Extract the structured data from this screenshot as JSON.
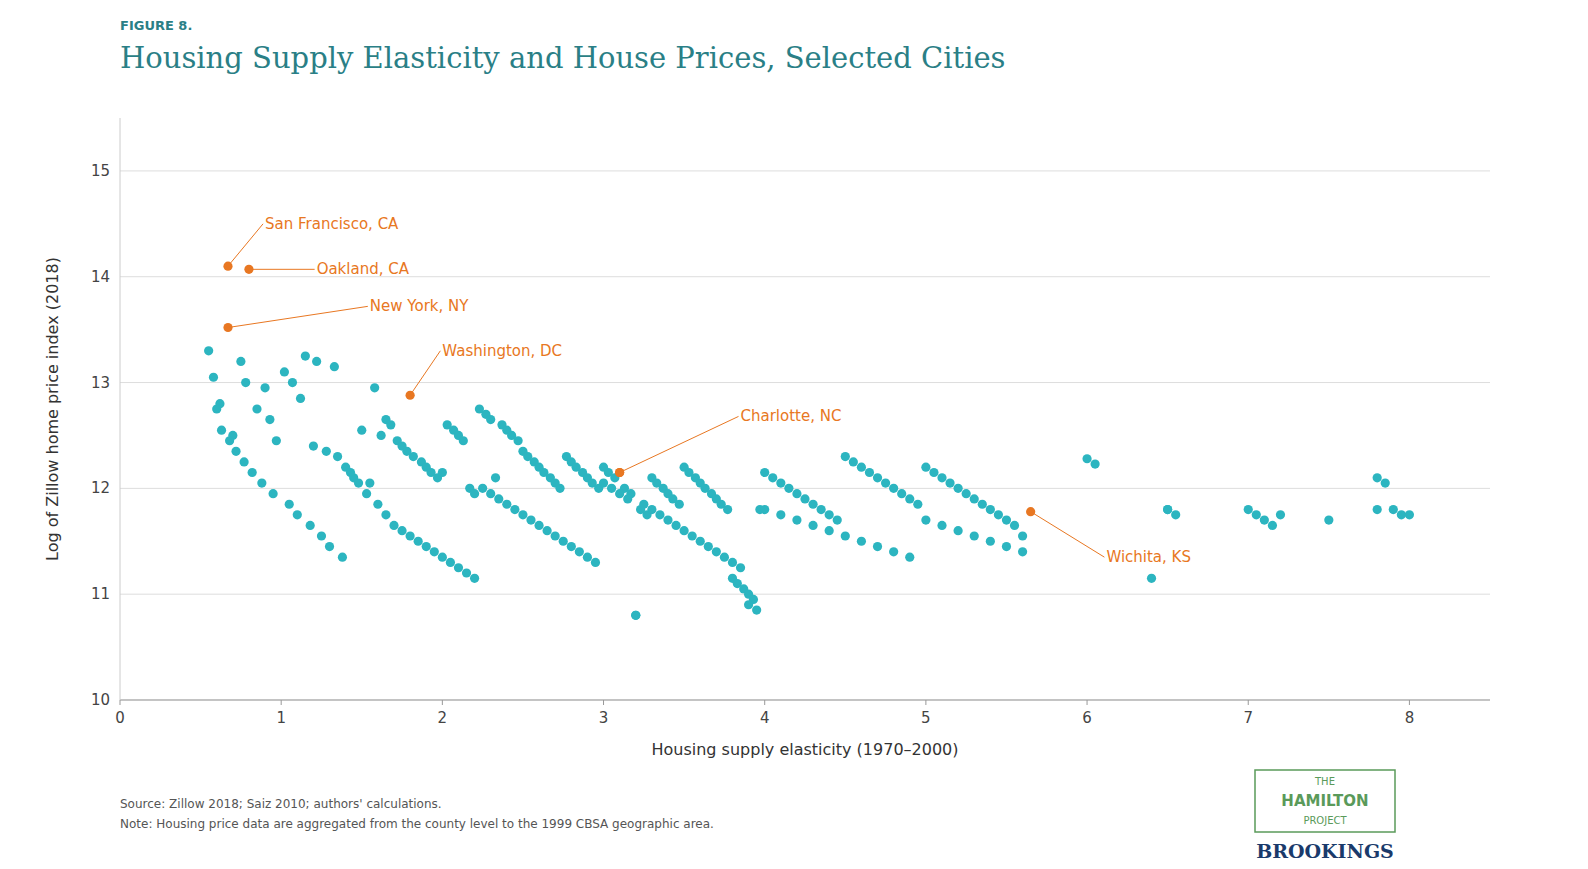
{
  "chart_data": {
    "type": "scatter",
    "figure_label": "FIGURE 8.",
    "title": "Housing Supply Elasticity and House Prices, Selected Cities",
    "xlabel": "Housing supply elasticity (1970–2000)",
    "ylabel": "Log of Zillow home price index (2018)",
    "xlim": [
      0,
      8.5
    ],
    "ylim": [
      10,
      15.5
    ],
    "xticks": [
      0,
      1,
      2,
      3,
      4,
      5,
      6,
      7,
      8
    ],
    "yticks": [
      10,
      11,
      12,
      13,
      14,
      15
    ],
    "grid": true,
    "x": [
      0.67,
      0.8,
      0.67,
      1.8,
      3.1,
      5.65,
      0.55,
      0.58,
      0.62,
      0.7,
      0.75,
      0.78,
      0.85,
      0.9,
      0.93,
      0.97,
      1.02,
      1.07,
      1.12,
      1.15,
      1.2,
      1.22,
      1.28,
      1.33,
      1.35,
      1.4,
      1.45,
      1.5,
      1.55,
      1.58,
      1.62,
      1.65,
      1.68,
      1.72,
      1.75,
      1.78,
      1.82,
      1.87,
      1.9,
      1.93,
      1.97,
      2.0,
      2.03,
      2.07,
      2.1,
      2.13,
      2.17,
      2.2,
      2.23,
      2.27,
      2.3,
      2.33,
      2.37,
      2.4,
      2.43,
      2.47,
      2.5,
      2.53,
      2.57,
      2.6,
      2.63,
      2.67,
      2.7,
      2.73,
      2.77,
      2.8,
      2.83,
      2.87,
      2.9,
      2.93,
      2.97,
      3.0,
      3.03,
      3.07,
      3.1,
      3.13,
      3.17,
      3.2,
      3.23,
      3.27,
      3.3,
      3.33,
      3.37,
      3.4,
      3.43,
      3.47,
      3.5,
      3.53,
      3.57,
      3.6,
      3.63,
      3.67,
      3.7,
      3.73,
      3.77,
      3.8,
      3.83,
      3.87,
      3.9,
      3.93,
      3.97,
      4.0,
      4.05,
      4.1,
      4.15,
      4.2,
      4.25,
      4.3,
      4.35,
      4.4,
      4.45,
      4.5,
      4.55,
      4.6,
      4.65,
      4.7,
      4.75,
      4.8,
      4.85,
      4.9,
      4.95,
      5.0,
      5.05,
      5.1,
      5.15,
      5.2,
      5.25,
      5.3,
      5.35,
      5.4,
      5.45,
      5.5,
      5.55,
      5.6,
      6.0,
      6.05,
      6.5,
      6.55,
      7.0,
      7.05,
      7.1,
      7.15,
      7.8,
      7.85,
      7.9,
      7.95,
      0.6,
      0.63,
      0.68,
      0.72,
      0.77,
      0.82,
      0.88,
      0.95,
      1.05,
      1.1,
      1.18,
      1.25,
      1.3,
      1.38,
      1.43,
      1.48,
      1.53,
      1.6,
      1.65,
      1.7,
      1.75,
      1.8,
      1.85,
      1.9,
      1.95,
      2.0,
      2.05,
      2.1,
      2.15,
      2.2,
      2.25,
      2.3,
      2.35,
      2.4,
      2.45,
      2.5,
      2.55,
      2.6,
      2.65,
      2.7,
      2.75,
      2.8,
      2.85,
      2.9,
      2.95,
      3.0,
      3.05,
      3.1,
      3.15,
      3.2,
      3.25,
      3.3,
      3.35,
      3.4,
      3.45,
      3.5,
      3.55,
      3.6,
      3.65,
      3.7,
      3.75,
      3.8,
      3.85,
      3.9,
      3.95,
      4.0,
      4.1,
      4.2,
      4.3,
      4.4,
      4.5,
      4.6,
      4.7,
      4.8,
      4.9,
      5.0,
      5.1,
      5.2,
      5.3,
      5.4,
      5.5,
      5.6,
      6.4,
      6.5,
      7.2,
      7.5,
      7.8,
      8.0
    ],
    "values": [
      14.1,
      14.07,
      13.52,
      12.88,
      12.15,
      11.78,
      13.3,
      13.05,
      12.8,
      12.5,
      13.2,
      13.0,
      12.75,
      12.95,
      12.65,
      12.45,
      13.1,
      13.0,
      12.85,
      13.25,
      12.4,
      13.2,
      12.35,
      13.15,
      12.3,
      12.2,
      12.1,
      12.55,
      12.05,
      12.95,
      12.5,
      12.65,
      12.6,
      12.45,
      12.4,
      12.35,
      12.3,
      12.25,
      12.2,
      12.15,
      12.1,
      12.15,
      12.6,
      12.55,
      12.5,
      12.45,
      12.0,
      11.95,
      12.75,
      12.7,
      12.65,
      12.1,
      12.6,
      12.55,
      12.5,
      12.45,
      12.35,
      12.3,
      12.25,
      12.2,
      12.15,
      12.1,
      12.05,
      12.0,
      12.3,
      12.25,
      12.2,
      12.15,
      12.1,
      12.05,
      12.0,
      12.2,
      12.15,
      12.1,
      12.15,
      12.0,
      11.95,
      10.8,
      11.8,
      11.75,
      12.1,
      12.05,
      12.0,
      11.95,
      11.9,
      11.85,
      12.2,
      12.15,
      12.1,
      12.05,
      12.0,
      11.95,
      11.9,
      11.85,
      11.8,
      11.15,
      11.1,
      11.05,
      11.0,
      10.95,
      11.8,
      12.15,
      12.1,
      12.05,
      12.0,
      11.95,
      11.9,
      11.85,
      11.8,
      11.75,
      11.7,
      12.3,
      12.25,
      12.2,
      12.15,
      12.1,
      12.05,
      12.0,
      11.95,
      11.9,
      11.85,
      12.2,
      12.15,
      12.1,
      12.05,
      12.0,
      11.95,
      11.9,
      11.85,
      11.8,
      11.75,
      11.7,
      11.65,
      11.55,
      12.28,
      12.23,
      11.8,
      11.75,
      11.8,
      11.75,
      11.7,
      11.65,
      12.1,
      12.05,
      11.8,
      11.75,
      12.75,
      12.55,
      12.45,
      12.35,
      12.25,
      12.15,
      12.05,
      11.95,
      11.85,
      11.75,
      11.65,
      11.55,
      11.45,
      11.35,
      12.15,
      12.05,
      11.95,
      11.85,
      11.75,
      11.65,
      11.6,
      11.55,
      11.5,
      11.45,
      11.4,
      11.35,
      11.3,
      11.25,
      11.2,
      11.15,
      12.0,
      11.95,
      11.9,
      11.85,
      11.8,
      11.75,
      11.7,
      11.65,
      11.6,
      11.55,
      11.5,
      11.45,
      11.4,
      11.35,
      11.3,
      12.05,
      12.0,
      11.95,
      11.9,
      10.8,
      11.85,
      11.8,
      11.75,
      11.7,
      11.65,
      11.6,
      11.55,
      11.5,
      11.45,
      11.4,
      11.35,
      11.3,
      11.25,
      10.9,
      10.85,
      11.8,
      11.75,
      11.7,
      11.65,
      11.6,
      11.55,
      11.5,
      11.45,
      11.4,
      11.35,
      11.7,
      11.65,
      11.6,
      11.55,
      11.5,
      11.45,
      11.4,
      11.15,
      11.8,
      11.75,
      11.7,
      11.8,
      11.75
    ],
    "colors": [
      "#E87722",
      "#E87722",
      "#E87722",
      "#E87722",
      "#E87722",
      "#E87722",
      "#2CB5C0",
      "#2CB5C0",
      "#2CB5C0",
      "#2CB5C0",
      "#2CB5C0",
      "#2CB5C0",
      "#2CB5C0",
      "#2CB5C0",
      "#2CB5C0",
      "#2CB5C0",
      "#2CB5C0",
      "#2CB5C0",
      "#2CB5C0",
      "#2CB5C0",
      "#2CB5C0",
      "#2CB5C0",
      "#2CB5C0",
      "#2CB5C0",
      "#2CB5C0",
      "#2CB5C0",
      "#2CB5C0",
      "#2CB5C0",
      "#2CB5C0",
      "#2CB5C0",
      "#2CB5C0",
      "#2CB5C0",
      "#2CB5C0",
      "#2CB5C0",
      "#2CB5C0",
      "#2CB5C0",
      "#2CB5C0",
      "#2CB5C0",
      "#2CB5C0",
      "#2CB5C0",
      "#2CB5C0",
      "#2CB5C0",
      "#2CB5C0",
      "#2CB5C0",
      "#2CB5C0",
      "#2CB5C0",
      "#2CB5C0",
      "#2CB5C0",
      "#2CB5C0",
      "#2CB5C0",
      "#2CB5C0",
      "#2CB5C0",
      "#2CB5C0",
      "#2CB5C0",
      "#2CB5C0",
      "#2CB5C0",
      "#2CB5C0",
      "#2CB5C0",
      "#2CB5C0",
      "#2CB5C0",
      "#2CB5C0",
      "#2CB5C0",
      "#2CB5C0",
      "#2CB5C0",
      "#2CB5C0",
      "#2CB5C0",
      "#2CB5C0",
      "#2CB5C0",
      "#2CB5C0",
      "#2CB5C0",
      "#2CB5C0",
      "#2CB5C0",
      "#2CB5C0",
      "#2CB5C0",
      "#E87722",
      "#2CB5C0",
      "#2CB5C0",
      "#2CB5C0",
      "#2CB5C0",
      "#2CB5C0",
      "#2CB5C0",
      "#2CB5C0",
      "#2CB5C0",
      "#2CB5C0",
      "#2CB5C0",
      "#2CB5C0",
      "#2CB5C0",
      "#2CB5C0",
      "#2CB5C0",
      "#2CB5C0",
      "#2CB5C0",
      "#2CB5C0",
      "#2CB5C0",
      "#2CB5C0",
      "#2CB5C0",
      "#2CB5C0",
      "#2CB5C0",
      "#2CB5C0",
      "#2CB5C0",
      "#2CB5C0",
      "#2CB5C0",
      "#2CB5C0",
      "#2CB5C0",
      "#2CB5C0",
      "#2CB5C0",
      "#2CB5C0",
      "#2CB5C0",
      "#2CB5C0",
      "#2CB5C0",
      "#2CB5C0",
      "#2CB5C0",
      "#2CB5C0",
      "#2CB5C0",
      "#2CB5C0",
      "#2CB5C0",
      "#2CB5C0",
      "#2CB5C0",
      "#2CB5C0",
      "#2CB5C0",
      "#2CB5C0",
      "#2CB5C0",
      "#2CB5C0",
      "#2CB5C0",
      "#2CB5C0",
      "#2CB5C0",
      "#2CB5C0",
      "#2CB5C0",
      "#2CB5C0",
      "#2CB5C0",
      "#2CB5C0",
      "#2CB5C0",
      "#2CB5C0",
      "#2CB5C0",
      "#2CB5C0",
      "#2CB5C0",
      "#2CB5C0",
      "#2CB5C0",
      "#2CB5C0",
      "#2CB5C0",
      "#2CB5C0",
      "#2CB5C0",
      "#2CB5C0",
      "#2CB5C0",
      "#2CB5C0",
      "#2CB5C0",
      "#2CB5C0",
      "#2CB5C0",
      "#2CB5C0",
      "#2CB5C0",
      "#2CB5C0",
      "#2CB5C0",
      "#2CB5C0",
      "#2CB5C0",
      "#2CB5C0",
      "#2CB5C0",
      "#2CB5C0",
      "#2CB5C0",
      "#2CB5C0",
      "#2CB5C0",
      "#2CB5C0",
      "#2CB5C0",
      "#2CB5C0",
      "#2CB5C0",
      "#2CB5C0",
      "#2CB5C0",
      "#2CB5C0",
      "#2CB5C0",
      "#2CB5C0",
      "#2CB5C0",
      "#2CB5C0",
      "#2CB5C0",
      "#2CB5C0",
      "#2CB5C0",
      "#2CB5C0",
      "#2CB5C0",
      "#2CB5C0",
      "#2CB5C0",
      "#2CB5C0",
      "#2CB5C0",
      "#2CB5C0",
      "#2CB5C0",
      "#2CB5C0",
      "#2CB5C0",
      "#2CB5C0",
      "#2CB5C0",
      "#2CB5C0",
      "#2CB5C0",
      "#2CB5C0",
      "#2CB5C0",
      "#2CB5C0",
      "#2CB5C0",
      "#2CB5C0",
      "#2CB5C0",
      "#2CB5C0",
      "#2CB5C0",
      "#2CB5C0",
      "#2CB5C0",
      "#2CB5C0",
      "#2CB5C0",
      "#2CB5C0",
      "#2CB5C0",
      "#2CB5C0",
      "#2CB5C0",
      "#2CB5C0",
      "#2CB5C0",
      "#2CB5C0",
      "#2CB5C0",
      "#2CB5C0",
      "#2CB5C0",
      "#2CB5C0",
      "#2CB5C0",
      "#2CB5C0",
      "#2CB5C0",
      "#2CB5C0",
      "#2CB5C0",
      "#2CB5C0",
      "#2CB5C0",
      "#2CB5C0",
      "#2CB5C0",
      "#2CB5C0",
      "#2CB5C0",
      "#2CB5C0",
      "#2CB5C0",
      "#2CB5C0",
      "#2CB5C0",
      "#2CB5C0",
      "#2CB5C0",
      "#2CB5C0",
      "#2CB5C0",
      "#2CB5C0",
      "#2CB5C0",
      "#2CB5C0",
      "#2CB5C0",
      "#2CB5C0"
    ],
    "annotations": [
      {
        "text": "San Francisco, CA",
        "x": 0.67,
        "y": 14.1,
        "label_x": 0.9,
        "label_y": 14.5
      },
      {
        "text": "Oakland, CA",
        "x": 0.8,
        "y": 14.07,
        "label_x": 1.22,
        "label_y": 14.07
      },
      {
        "text": "New York, NY",
        "x": 0.67,
        "y": 13.52,
        "label_x": 1.55,
        "label_y": 13.72
      },
      {
        "text": "Washington, DC",
        "x": 1.8,
        "y": 12.88,
        "label_x": 2.0,
        "label_y": 13.3
      },
      {
        "text": "Charlotte, NC",
        "x": 3.1,
        "y": 12.15,
        "label_x": 3.85,
        "label_y": 12.68
      },
      {
        "text": "Wichita, KS",
        "x": 5.65,
        "y": 11.78,
        "label_x": 6.12,
        "label_y": 11.35
      }
    ],
    "source": "Source: Zillow 2018; Saiz 2010; authors' calculations.",
    "note": "Note: Housing price data are aggregated from the county level to the 1999 CBSA geographic area.",
    "logo": [
      "THE",
      "HAMILTON",
      "PROJECT"
    ],
    "credit": "BROOKINGS"
  }
}
